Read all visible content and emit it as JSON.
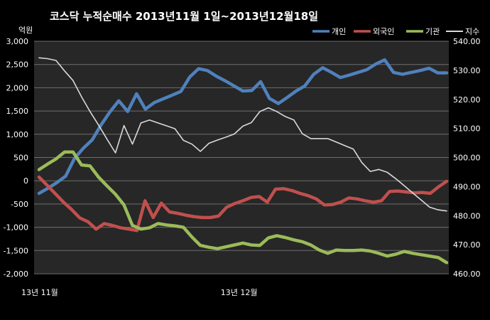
{
  "chart_data": {
    "type": "line",
    "title": "코스닥 누적순매수 2013년11월 1일~2013년12월18일",
    "left_unit": "억원",
    "left_axis": {
      "ylim": [
        -2000,
        3000
      ],
      "ticks": [
        "3,000",
        "2,500",
        "2,000",
        "1,500",
        "1,000",
        "500",
        "0",
        "-500",
        "-1,000",
        "-1,500",
        "-2,000"
      ],
      "tick_values": [
        3000,
        2500,
        2000,
        1500,
        1000,
        500,
        0,
        -500,
        -1000,
        -1500,
        -2000
      ]
    },
    "right_axis": {
      "ylim": [
        460,
        540
      ],
      "ticks": [
        "540.00",
        "530.00",
        "520.00",
        "510.00",
        "500.00",
        "490.00",
        "480.00",
        "470.00",
        "460.00"
      ],
      "tick_values": [
        540,
        530,
        520,
        510,
        500,
        490,
        480,
        470,
        460
      ]
    },
    "x_labels": [
      {
        "index": 0,
        "label": "13년 11월"
      },
      {
        "index": 25,
        "label": "13년 12월"
      }
    ],
    "grid": true,
    "legend_position": "top-right",
    "series": [
      {
        "name": "개인",
        "axis": "left",
        "color": "#4f81bd",
        "values": [
          -270,
          -160,
          -40,
          100,
          480,
          700,
          880,
          1200,
          1480,
          1720,
          1490,
          1870,
          1540,
          1680,
          1760,
          1840,
          1920,
          2230,
          2410,
          2370,
          2250,
          2150,
          2040,
          1930,
          1940,
          2130,
          1770,
          1660,
          1790,
          1930,
          2040,
          2290,
          2430,
          2330,
          2220,
          2270,
          2330,
          2390,
          2510,
          2600,
          2330,
          2290,
          2330,
          2370,
          2420,
          2320,
          2320
        ]
      },
      {
        "name": "외국인",
        "axis": "left",
        "color": "#c0504d",
        "values": [
          80,
          -100,
          -280,
          -460,
          -620,
          -800,
          -880,
          -1040,
          -920,
          -960,
          -1010,
          -1040,
          -1070,
          -430,
          -790,
          -480,
          -670,
          -700,
          -740,
          -770,
          -790,
          -790,
          -760,
          -570,
          -490,
          -430,
          -360,
          -340,
          -460,
          -180,
          -170,
          -210,
          -270,
          -320,
          -390,
          -520,
          -510,
          -460,
          -370,
          -390,
          -430,
          -460,
          -430,
          -230,
          -220,
          -240,
          -260,
          -250,
          -270,
          -130,
          -10
        ]
      },
      {
        "name": "기관",
        "axis": "left",
        "color": "#9bbb59",
        "values": [
          240,
          360,
          470,
          620,
          620,
          340,
          320,
          80,
          -110,
          -290,
          -520,
          -960,
          -1040,
          -1010,
          -920,
          -950,
          -970,
          -1000,
          -1210,
          -1390,
          -1430,
          -1460,
          -1420,
          -1380,
          -1340,
          -1380,
          -1390,
          -1230,
          -1180,
          -1220,
          -1270,
          -1310,
          -1380,
          -1490,
          -1560,
          -1490,
          -1500,
          -1500,
          -1490,
          -1510,
          -1560,
          -1620,
          -1580,
          -1520,
          -1560,
          -1590,
          -1620,
          -1650,
          -1760
        ]
      },
      {
        "name": "지수",
        "axis": "right",
        "color": "#d9d9d9",
        "values": [
          534.3,
          534.0,
          533.4,
          529.8,
          526.5,
          520.9,
          515.8,
          511.2,
          506.3,
          501.6,
          511.0,
          504.6,
          511.9,
          512.9,
          511.9,
          510.9,
          509.9,
          505.9,
          504.6,
          502.1,
          504.9,
          506.0,
          507.0,
          508.1,
          510.8,
          512.0,
          515.8,
          517.1,
          515.8,
          514.1,
          512.9,
          508.2,
          506.5,
          506.5,
          506.5,
          505.3,
          504.1,
          502.9,
          498.3,
          495.2,
          495.9,
          494.9,
          492.7,
          490.3,
          487.8,
          485.4,
          482.9,
          482.0,
          481.6
        ]
      }
    ]
  }
}
